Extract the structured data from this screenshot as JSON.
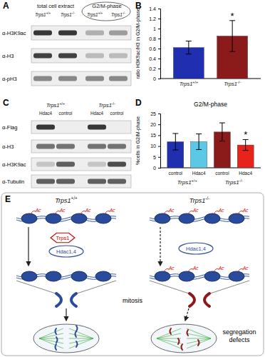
{
  "panel_labels": [
    "A",
    "B",
    "C",
    "D",
    "E"
  ],
  "blots": [
    {
      "headers": [
        "total cell extract",
        "G2/M-phase"
      ],
      "lanes": [
        "Trps1+/+",
        "Trps1-/-",
        "Trps1+/+",
        "Trps1-/-"
      ],
      "rows": [
        "α-H3K9ac",
        "α-H3",
        "α-pH3"
      ]
    },
    {
      "headers": [
        "Trps1+/+",
        "Trps1-/-"
      ],
      "lanes": [
        "Hdac4",
        "control",
        "Hdac4",
        "control"
      ],
      "rows": [
        "α-Flag",
        "α-H3",
        "α-H3K9ac",
        "α-Tubulin"
      ]
    }
  ],
  "chart_data": [
    {
      "type": "bar",
      "y_label": "ratio H3K9ac/H3 in G2/M-phase",
      "categories": [
        "Trps1+/+",
        "Trps1-/-"
      ],
      "values": [
        0.62,
        0.85
      ],
      "errors": [
        0.13,
        0.31
      ],
      "colors": [
        "#1f2fb0",
        "#8b1a1a"
      ],
      "ylim": [
        0,
        1.4
      ],
      "yticks": [
        0,
        0.2,
        0.4,
        0.6,
        0.8,
        1,
        1.2,
        1.4
      ],
      "annotations": [
        {
          "text": "*",
          "category": 1
        }
      ]
    },
    {
      "type": "bar",
      "title": "G2/M-phase",
      "y_label": "%cells in G2/M-phase",
      "categories": [
        "control",
        "Hdac4",
        "control",
        "Hdac4"
      ],
      "groups": [
        "Trps1+/+",
        "Trps1-/-"
      ],
      "values": [
        12,
        12,
        16.5,
        10.5
      ],
      "errors": [
        3.8,
        3.6,
        4.2,
        2.5
      ],
      "colors": [
        "#1f2fb0",
        "#5bc8e8",
        "#8b1a1a",
        "#e8231c"
      ],
      "ylim": [
        0,
        25
      ],
      "yticks": [
        0,
        5,
        10,
        15,
        20,
        25
      ],
      "annotations": [
        {
          "text": "*",
          "category": 3
        }
      ]
    }
  ],
  "diagram": {
    "left": {
      "title": "Trps1+/+",
      "factors": [
        "Trps1",
        "Hdac1,4"
      ]
    },
    "right": {
      "title": "Trps1-/-",
      "factors": [
        "Hdac1,4"
      ],
      "outcome": "segregation defects"
    },
    "center_label": "mitosis",
    "acetyl_label": "Ac"
  }
}
